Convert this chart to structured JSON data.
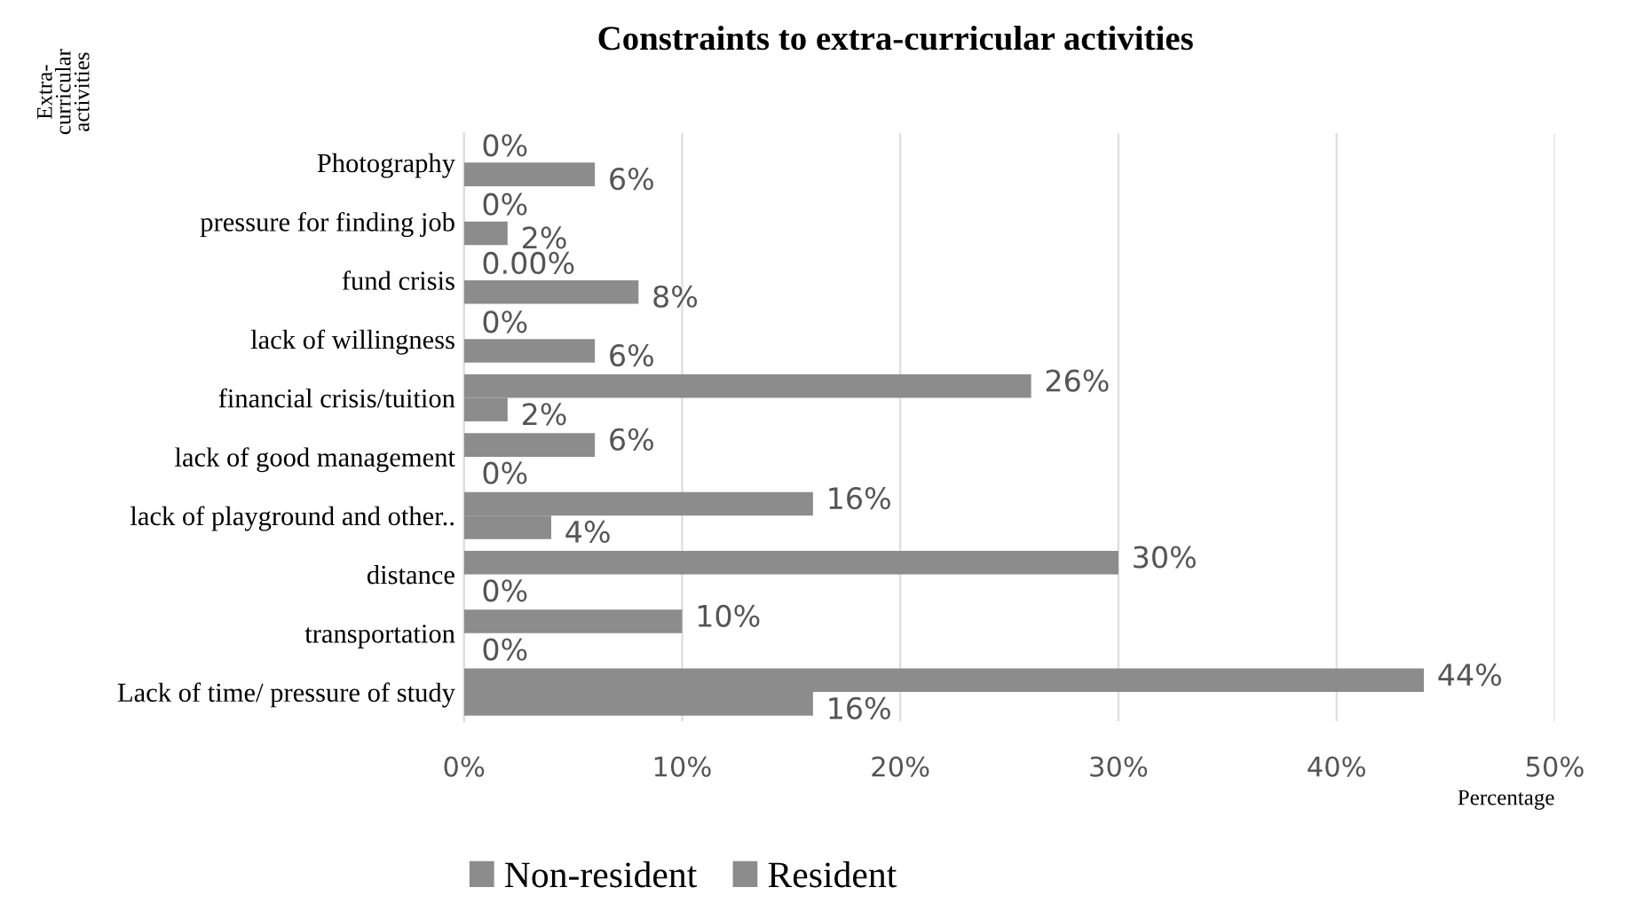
{
  "chart_data": {
    "type": "bar",
    "orientation": "horizontal",
    "title": "Constraints to extra-curricular activities",
    "xlabel": "Percentage",
    "ylabel": "Extra-\ncurricular\nactivities",
    "categories": [
      "Photography",
      "pressure for finding job",
      "fund crisis",
      "lack of willingness",
      "financial crisis/tuition",
      "lack of good management",
      "lack of playground and other..",
      "distance",
      "transportation",
      "Lack of time/ pressure of study"
    ],
    "series": [
      {
        "name": "Non-resident",
        "color": "#8c8c8c",
        "values": [
          6,
          2,
          8,
          6,
          2,
          0,
          4,
          0,
          0,
          16
        ],
        "value_labels": [
          "6%",
          "2%",
          "8%",
          "6%",
          "2%",
          "0%",
          "4%",
          "0%",
          "0%",
          "16%"
        ]
      },
      {
        "name": "Resident",
        "color": "#8c8c8c",
        "values": [
          0,
          0,
          0,
          0,
          26,
          6,
          16,
          30,
          10,
          44
        ],
        "value_labels": [
          "0%",
          "0%",
          "0.00%",
          "0%",
          "26%",
          "6%",
          "16%",
          "30%",
          "10%",
          "44%"
        ]
      }
    ],
    "xlim": [
      0,
      50
    ],
    "xticks": [
      {
        "value": 0,
        "label": "0%"
      },
      {
        "value": 10,
        "label": "10%"
      },
      {
        "value": 20,
        "label": "20%"
      },
      {
        "value": 30,
        "label": "30%"
      },
      {
        "value": 40,
        "label": "40%"
      },
      {
        "value": 50,
        "label": "50%"
      }
    ],
    "grid": "x",
    "legend": "bottom"
  }
}
